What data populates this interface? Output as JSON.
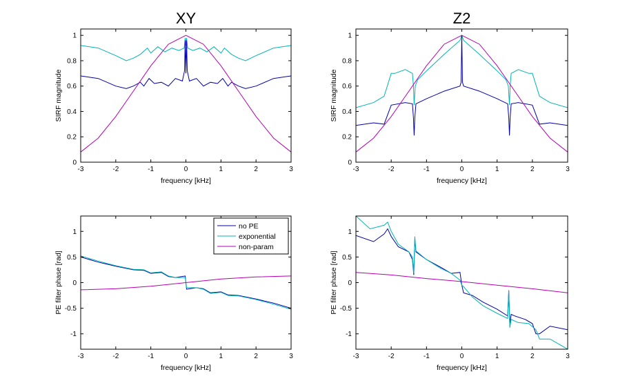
{
  "colors": {
    "no_pe": "#0000aa",
    "exponential": "#00b4b4",
    "non_param": "#b400b4"
  },
  "legend": {
    "labels": [
      "no PE",
      "exponential",
      "non-param"
    ]
  },
  "chart_data": [
    {
      "id": "xy-mag",
      "type": "line",
      "title": "XY",
      "xlabel": "frequency [kHz]",
      "ylabel": "SIRF magnitude",
      "xlim": [
        -3,
        3
      ],
      "ylim": [
        0,
        1.05
      ],
      "xticks": [
        -3,
        -2,
        -1,
        0,
        1,
        2,
        3
      ],
      "yticks": [
        0,
        0.2,
        0.4,
        0.6,
        0.8,
        1
      ],
      "ytick_labels": [
        "0",
        "0.2",
        "0.4",
        "0.6",
        "0.8",
        "1"
      ],
      "series": [
        {
          "name": "exponential",
          "color": "exponential",
          "x": [
            -3,
            -2.5,
            -2,
            -1.7,
            -1.5,
            -1.3,
            -1.1,
            -1.0,
            -0.8,
            -0.6,
            -0.4,
            -0.2,
            -0.05,
            -0.02,
            0,
            0.02,
            0.05,
            0.2,
            0.4,
            0.6,
            0.8,
            1.0,
            1.1,
            1.3,
            1.5,
            1.7,
            2,
            2.5,
            3
          ],
          "y": [
            0.92,
            0.9,
            0.84,
            0.8,
            0.82,
            0.85,
            0.9,
            0.86,
            0.91,
            0.87,
            0.9,
            0.88,
            0.9,
            0.98,
            0.92,
            0.98,
            0.9,
            0.88,
            0.9,
            0.87,
            0.91,
            0.86,
            0.9,
            0.85,
            0.82,
            0.8,
            0.84,
            0.9,
            0.92
          ]
        },
        {
          "name": "no PE",
          "color": "no_pe",
          "x": [
            -3,
            -2.5,
            -2,
            -1.7,
            -1.5,
            -1.3,
            -1.2,
            -1.05,
            -0.9,
            -0.7,
            -0.5,
            -0.3,
            -0.1,
            -0.04,
            -0.02,
            0,
            0.02,
            0.04,
            0.1,
            0.3,
            0.5,
            0.7,
            0.9,
            1.05,
            1.2,
            1.3,
            1.5,
            1.7,
            2,
            2.5,
            3
          ],
          "y": [
            0.68,
            0.66,
            0.6,
            0.58,
            0.6,
            0.63,
            0.6,
            0.66,
            0.62,
            0.63,
            0.6,
            0.66,
            0.64,
            0.72,
            0.96,
            0.7,
            0.96,
            0.72,
            0.64,
            0.66,
            0.6,
            0.63,
            0.62,
            0.66,
            0.6,
            0.63,
            0.6,
            0.58,
            0.6,
            0.66,
            0.68
          ]
        },
        {
          "name": "non-param",
          "color": "non_param",
          "x": [
            -3,
            -2.5,
            -2,
            -1.5,
            -1,
            -0.5,
            0,
            0.5,
            1,
            1.5,
            2,
            2.5,
            3
          ],
          "y": [
            0.08,
            0.19,
            0.36,
            0.56,
            0.76,
            0.93,
            1.0,
            0.93,
            0.76,
            0.56,
            0.36,
            0.19,
            0.08
          ]
        }
      ]
    },
    {
      "id": "z2-mag",
      "type": "line",
      "title": "Z2",
      "xlabel": "frequency [kHz]",
      "ylabel": "SIRF magnitude",
      "xlim": [
        -3,
        3
      ],
      "ylim": [
        0,
        1.05
      ],
      "xticks": [
        -3,
        -2,
        -1,
        0,
        1,
        2,
        3
      ],
      "yticks": [
        0,
        0.2,
        0.4,
        0.6,
        0.8,
        1
      ],
      "ytick_labels": [
        "0",
        "0.2",
        "0.4",
        "0.6",
        "0.8",
        "1"
      ],
      "series": [
        {
          "name": "exponential",
          "color": "exponential",
          "x": [
            -3,
            -2.5,
            -2.2,
            -2.0,
            -1.9,
            -1.6,
            -1.4,
            -1.37,
            -1.35,
            -1.32,
            -1.25,
            -1.0,
            -0.5,
            -0.05,
            0,
            0.05,
            0.5,
            1.0,
            1.25,
            1.32,
            1.35,
            1.37,
            1.4,
            1.6,
            1.9,
            2.0,
            2.2,
            2.5,
            3
          ],
          "y": [
            0.43,
            0.47,
            0.52,
            0.7,
            0.7,
            0.73,
            0.7,
            0.6,
            0.45,
            0.6,
            0.65,
            0.72,
            0.85,
            0.96,
            1.0,
            0.96,
            0.85,
            0.72,
            0.65,
            0.6,
            0.45,
            0.6,
            0.7,
            0.73,
            0.7,
            0.7,
            0.52,
            0.47,
            0.43
          ]
        },
        {
          "name": "no PE",
          "color": "no_pe",
          "x": [
            -3,
            -2.5,
            -2.2,
            -2.0,
            -1.6,
            -1.4,
            -1.37,
            -1.35,
            -1.33,
            -1.3,
            -1.0,
            -0.5,
            -0.05,
            -0.02,
            0,
            0.02,
            0.05,
            0.5,
            1.0,
            1.3,
            1.33,
            1.35,
            1.37,
            1.4,
            1.6,
            2.0,
            2.2,
            2.5,
            3
          ],
          "y": [
            0.29,
            0.31,
            0.3,
            0.45,
            0.47,
            0.46,
            0.35,
            0.21,
            0.35,
            0.46,
            0.5,
            0.56,
            0.6,
            0.63,
            1.0,
            0.63,
            0.6,
            0.56,
            0.5,
            0.46,
            0.35,
            0.21,
            0.35,
            0.46,
            0.47,
            0.45,
            0.3,
            0.31,
            0.29
          ]
        },
        {
          "name": "non-param",
          "color": "non_param",
          "x": [
            -3,
            -2.5,
            -2,
            -1.5,
            -1,
            -0.5,
            0,
            0.5,
            1,
            1.5,
            2,
            2.5,
            3
          ],
          "y": [
            0.08,
            0.19,
            0.36,
            0.56,
            0.76,
            0.93,
            1.0,
            0.93,
            0.76,
            0.56,
            0.36,
            0.19,
            0.08
          ]
        }
      ]
    },
    {
      "id": "xy-phase",
      "type": "line",
      "title": "",
      "xlabel": "frequency [kHz]",
      "ylabel": "PE filter phase [rad]",
      "xlim": [
        -3,
        3
      ],
      "ylim": [
        -1.3,
        1.3
      ],
      "xticks": [
        -3,
        -2,
        -1,
        0,
        1,
        2,
        3
      ],
      "yticks": [
        -1,
        -0.5,
        0,
        0.5,
        1
      ],
      "ytick_labels": [
        "-1",
        "-0.5",
        "0",
        "0.5",
        "1"
      ],
      "legend": true,
      "series": [
        {
          "name": "no PE",
          "color": "no_pe",
          "x": [
            -3,
            -2.5,
            -2,
            -1.5,
            -1.2,
            -1.0,
            -0.7,
            -0.5,
            -0.3,
            -0.02,
            0,
            0.02,
            0.3,
            0.5,
            0.7,
            1.0,
            1.2,
            1.5,
            2,
            2.5,
            3
          ],
          "y": [
            0.5,
            0.4,
            0.32,
            0.25,
            0.24,
            0.18,
            0.2,
            0.12,
            0.1,
            0.13,
            0.0,
            -0.13,
            -0.1,
            -0.12,
            -0.2,
            -0.18,
            -0.24,
            -0.25,
            -0.32,
            -0.4,
            -0.5
          ]
        },
        {
          "name": "exponential",
          "color": "exponential",
          "x": [
            -3,
            -2.5,
            -2,
            -1.5,
            -1.2,
            -1.0,
            -0.7,
            -0.5,
            -0.3,
            -0.02,
            0,
            0.02,
            0.3,
            0.5,
            0.7,
            1.0,
            1.2,
            1.5,
            2,
            2.5,
            3
          ],
          "y": [
            0.52,
            0.42,
            0.33,
            0.26,
            0.25,
            0.19,
            0.21,
            0.13,
            0.1,
            0.1,
            0.0,
            -0.1,
            -0.1,
            -0.13,
            -0.21,
            -0.19,
            -0.25,
            -0.26,
            -0.33,
            -0.42,
            -0.52
          ]
        },
        {
          "name": "non-param",
          "color": "non_param",
          "x": [
            -3,
            -2,
            -1,
            0,
            1,
            2,
            3
          ],
          "y": [
            -0.14,
            -0.12,
            -0.07,
            0.0,
            0.07,
            0.11,
            0.13
          ]
        }
      ]
    },
    {
      "id": "z2-phase",
      "type": "line",
      "title": "",
      "xlabel": "frequency [kHz]",
      "ylabel": "PE filter phase [rad]",
      "xlim": [
        -3,
        3
      ],
      "ylim": [
        -1.3,
        1.3
      ],
      "xticks": [
        -3,
        -2,
        -1,
        0,
        1,
        2,
        3
      ],
      "yticks": [
        -1,
        -0.5,
        0,
        0.5,
        1
      ],
      "ytick_labels": [
        "-1",
        "-0.5",
        "0",
        "0.5",
        "1"
      ],
      "series": [
        {
          "name": "no PE",
          "color": "no_pe",
          "x": [
            -3,
            -2.5,
            -2.2,
            -2.1,
            -2.0,
            -1.8,
            -1.5,
            -1.4,
            -1.36,
            -1.33,
            -1.3,
            -1.0,
            -0.6,
            -0.3,
            -0.05,
            0,
            0.05,
            0.3,
            0.6,
            1.0,
            1.3,
            1.33,
            1.36,
            1.4,
            1.5,
            1.8,
            2.0,
            2.1,
            2.2,
            2.5,
            3
          ],
          "y": [
            0.92,
            0.8,
            0.95,
            1.05,
            0.9,
            0.7,
            0.6,
            0.45,
            0.15,
            0.85,
            0.6,
            0.45,
            0.3,
            0.18,
            0.2,
            -0.05,
            -0.2,
            -0.25,
            -0.38,
            -0.52,
            -0.65,
            -0.15,
            -0.8,
            -0.62,
            -0.65,
            -0.72,
            -0.8,
            -1.0,
            -1.0,
            -0.85,
            -0.92
          ]
        },
        {
          "name": "exponential",
          "color": "exponential",
          "x": [
            -3,
            -2.6,
            -2.2,
            -2.1,
            -2.0,
            -1.8,
            -1.5,
            -1.4,
            -1.36,
            -1.33,
            -1.3,
            -1.0,
            -0.6,
            -0.3,
            -0.05,
            0,
            0.05,
            0.3,
            0.6,
            1.0,
            1.3,
            1.33,
            1.36,
            1.4,
            1.6,
            1.9,
            2.1,
            2.2,
            2.5,
            3
          ],
          "y": [
            1.3,
            1.05,
            1.12,
            1.18,
            1.0,
            0.75,
            0.6,
            0.5,
            0.18,
            0.9,
            0.62,
            0.45,
            0.28,
            0.18,
            0.05,
            -0.05,
            -0.08,
            -0.28,
            -0.45,
            -0.6,
            -0.7,
            -0.15,
            -0.88,
            -0.72,
            -0.78,
            -0.8,
            -0.92,
            -1.1,
            -1.1,
            -1.3
          ]
        },
        {
          "name": "non-param",
          "color": "non_param",
          "x": [
            -3,
            -2,
            -1,
            0,
            1,
            2,
            3
          ],
          "y": [
            0.2,
            0.15,
            0.08,
            0.02,
            -0.05,
            -0.12,
            -0.2
          ]
        }
      ]
    }
  ]
}
